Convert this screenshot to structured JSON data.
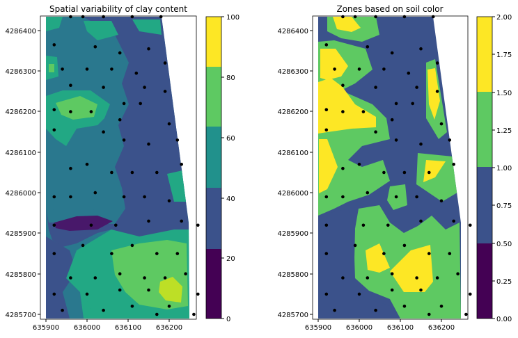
{
  "chart_data": [
    {
      "type": "heatmap",
      "chart_style": "filled contour with sample points",
      "title": "Spatial variability of clay content",
      "xlabel": "",
      "ylabel": "",
      "xlim": [
        635900,
        636280
      ],
      "ylim": [
        4285690,
        4286440
      ],
      "x_ticks": [
        "635900",
        "636000",
        "636100",
        "636200"
      ],
      "y_ticks": [
        "4285700",
        "4285800",
        "4285900",
        "4286000",
        "4286100",
        "4286200",
        "4286300",
        "4286400"
      ],
      "colorbar": {
        "colormap": "viridis",
        "range": [
          0,
          100
        ],
        "ticks": [
          "0",
          "20",
          "40",
          "60",
          "80",
          "100"
        ]
      },
      "field_description": "clay content mostly 40-60 (teal) on the west half and 20-40 (blue) in the central/east strip; a low (<20) band near y=4285920 on the west; 60-80 (green) patches around (635950,4286210) and in the southeast; a local high (80-100) near (636200,4285760)",
      "sample_points": [
        [
          635920,
          4286365
        ],
        [
          635940,
          4286305
        ],
        [
          635960,
          4286440
        ],
        [
          635990,
          4286435
        ],
        [
          636040,
          4286435
        ],
        [
          636110,
          4286435
        ],
        [
          636180,
          4286435
        ],
        [
          636020,
          4286360
        ],
        [
          636080,
          4286345
        ],
        [
          636150,
          4286355
        ],
        [
          636190,
          4286320
        ],
        [
          635920,
          4286205
        ],
        [
          636000,
          4286305
        ],
        [
          636060,
          4286305
        ],
        [
          636120,
          4286295
        ],
        [
          635960,
          4286265
        ],
        [
          636040,
          4286260
        ],
        [
          636090,
          4286220
        ],
        [
          636140,
          4286260
        ],
        [
          636190,
          4286250
        ],
        [
          635920,
          4286155
        ],
        [
          635960,
          4286200
        ],
        [
          636010,
          4286200
        ],
        [
          636080,
          4286180
        ],
        [
          636130,
          4286220
        ],
        [
          636200,
          4286170
        ],
        [
          636040,
          4286150
        ],
        [
          636090,
          4286130
        ],
        [
          636150,
          4286120
        ],
        [
          636220,
          4286130
        ],
        [
          635960,
          4286060
        ],
        [
          636000,
          4286070
        ],
        [
          636060,
          4286050
        ],
        [
          636110,
          4286050
        ],
        [
          636170,
          4286050
        ],
        [
          636230,
          4286070
        ],
        [
          635920,
          4285990
        ],
        [
          635960,
          4285990
        ],
        [
          636020,
          4286000
        ],
        [
          636090,
          4285990
        ],
        [
          636140,
          4285990
        ],
        [
          636200,
          4285980
        ],
        [
          635920,
          4285920
        ],
        [
          636010,
          4285920
        ],
        [
          636070,
          4285920
        ],
        [
          636150,
          4285930
        ],
        [
          636230,
          4285930
        ],
        [
          636270,
          4285920
        ],
        [
          635920,
          4285850
        ],
        [
          635990,
          4285870
        ],
        [
          636060,
          4285850
        ],
        [
          636110,
          4285870
        ],
        [
          636170,
          4285850
        ],
        [
          636220,
          4285850
        ],
        [
          635960,
          4285790
        ],
        [
          636020,
          4285790
        ],
        [
          636080,
          4285800
        ],
        [
          636140,
          4285790
        ],
        [
          636190,
          4285790
        ],
        [
          636240,
          4285800
        ],
        [
          635920,
          4285750
        ],
        [
          636000,
          4285750
        ],
        [
          636080,
          4285760
        ],
        [
          636150,
          4285760
        ],
        [
          636200,
          4285720
        ],
        [
          636270,
          4285750
        ],
        [
          635940,
          4285710
        ],
        [
          636040,
          4285710
        ],
        [
          636110,
          4285720
        ],
        [
          636260,
          4285700
        ],
        [
          636170,
          4285700
        ]
      ]
    },
    {
      "type": "heatmap",
      "chart_style": "filled contour with sample points",
      "title": "Zones based on soil color",
      "xlabel": "",
      "ylabel": "",
      "xlim": [
        635900,
        636280
      ],
      "ylim": [
        4285690,
        4286440
      ],
      "x_ticks": [
        "635900",
        "636000",
        "636100",
        "636200"
      ],
      "y_ticks": [
        "4285700",
        "4285800",
        "4285900",
        "4286000",
        "4286100",
        "4286200",
        "4286300",
        "4286400"
      ],
      "colorbar": {
        "colormap": "viridis",
        "range": [
          0,
          2
        ],
        "ticks": [
          "0.00",
          "0.25",
          "0.50",
          "0.75",
          "1.00",
          "1.25",
          "1.50",
          "1.75",
          "2.00"
        ]
      },
      "field_description": "zone 0.5 (dark blue) dominates; zone 1.5 (green) transition belts; zone 2 (yellow) in the west around y=4286150-4286320 and y=4285990-4286080, in the south-center around (636100,4285810), near (636030,4286420) at top, and small patches near (636210,4286060) and (636200,4286250)",
      "sample_points": [
        [
          635920,
          4286365
        ],
        [
          635940,
          4286305
        ],
        [
          635960,
          4286440
        ],
        [
          635990,
          4286435
        ],
        [
          636040,
          4286435
        ],
        [
          636110,
          4286435
        ],
        [
          636180,
          4286435
        ],
        [
          636020,
          4286360
        ],
        [
          636080,
          4286345
        ],
        [
          636150,
          4286355
        ],
        [
          636190,
          4286320
        ],
        [
          635920,
          4286205
        ],
        [
          636000,
          4286305
        ],
        [
          636060,
          4286305
        ],
        [
          636120,
          4286295
        ],
        [
          635960,
          4286265
        ],
        [
          636040,
          4286260
        ],
        [
          636090,
          4286220
        ],
        [
          636140,
          4286260
        ],
        [
          636190,
          4286250
        ],
        [
          635920,
          4286155
        ],
        [
          635960,
          4286200
        ],
        [
          636010,
          4286200
        ],
        [
          636080,
          4286180
        ],
        [
          636130,
          4286220
        ],
        [
          636200,
          4286170
        ],
        [
          636040,
          4286150
        ],
        [
          636090,
          4286130
        ],
        [
          636150,
          4286120
        ],
        [
          636220,
          4286130
        ],
        [
          635960,
          4286060
        ],
        [
          636000,
          4286070
        ],
        [
          636060,
          4286050
        ],
        [
          636110,
          4286050
        ],
        [
          636170,
          4286050
        ],
        [
          636230,
          4286070
        ],
        [
          635920,
          4285990
        ],
        [
          635960,
          4285990
        ],
        [
          636020,
          4286000
        ],
        [
          636090,
          4285990
        ],
        [
          636140,
          4285990
        ],
        [
          636200,
          4285980
        ],
        [
          635920,
          4285920
        ],
        [
          636010,
          4285920
        ],
        [
          636070,
          4285920
        ],
        [
          636150,
          4285930
        ],
        [
          636230,
          4285930
        ],
        [
          636270,
          4285920
        ],
        [
          635920,
          4285850
        ],
        [
          635990,
          4285870
        ],
        [
          636060,
          4285850
        ],
        [
          636110,
          4285870
        ],
        [
          636170,
          4285850
        ],
        [
          636220,
          4285850
        ],
        [
          635960,
          4285790
        ],
        [
          636020,
          4285790
        ],
        [
          636080,
          4285800
        ],
        [
          636140,
          4285790
        ],
        [
          636190,
          4285790
        ],
        [
          636240,
          4285800
        ],
        [
          635920,
          4285750
        ],
        [
          636000,
          4285750
        ],
        [
          636080,
          4285760
        ],
        [
          636150,
          4285760
        ],
        [
          636200,
          4285720
        ],
        [
          636270,
          4285750
        ],
        [
          635940,
          4285710
        ],
        [
          636040,
          4285710
        ],
        [
          636110,
          4285720
        ],
        [
          636260,
          4285700
        ],
        [
          636170,
          4285700
        ]
      ]
    }
  ]
}
